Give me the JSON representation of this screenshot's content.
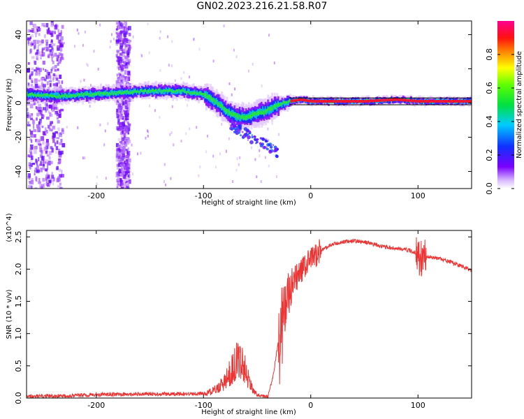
{
  "figure": {
    "title": "GN02.2023.216.21.58.R07"
  },
  "chart_data": [
    {
      "type": "heatmap",
      "xlabel": "Height of straight line (km)",
      "ylabel": "Frequency (Hz)",
      "xlim": [
        -265,
        150
      ],
      "ylim": [
        -50,
        48
      ],
      "x_ticks": [
        -200,
        -100,
        0,
        100
      ],
      "y_ticks": [
        -40,
        -20,
        0,
        20,
        40
      ],
      "grid": false,
      "colorbar": {
        "label": "Normalized spectral amplitude",
        "range": [
          0.0,
          1.0
        ],
        "ticks": [
          "0.0",
          "0.2",
          "0.4",
          "0.6",
          "0.8"
        ],
        "colormap": "rainbow (white-violet-blue-cyan-green-yellow-red-magenta)"
      },
      "ridge": [
        [
          -265,
          5
        ],
        [
          -240,
          4
        ],
        [
          -210,
          5
        ],
        [
          -180,
          6
        ],
        [
          -150,
          7
        ],
        [
          -120,
          7
        ],
        [
          -100,
          5
        ],
        [
          -90,
          1
        ],
        [
          -80,
          -4
        ],
        [
          -70,
          -8
        ],
        [
          -60,
          -8
        ],
        [
          -50,
          -6
        ],
        [
          -40,
          -4
        ],
        [
          -30,
          -1
        ],
        [
          -20,
          1
        ],
        [
          -10,
          2
        ],
        [
          0,
          1
        ],
        [
          50,
          1
        ],
        [
          80,
          2
        ],
        [
          100,
          1
        ],
        [
          150,
          1
        ]
      ],
      "noise_bands": [
        [
          -265,
          -232
        ],
        [
          -182,
          -170
        ]
      ],
      "colors": {
        "violet": "#7b14ff",
        "cyan": "#00e0d0",
        "green": "#1bd11b",
        "red": "#ff2020",
        "magenta": "#e0007a"
      }
    },
    {
      "type": "line",
      "xlabel": "Height of straight line (km)",
      "ylabel": "SNR (10 * v/v)",
      "y_multiplier": "(x10^4)",
      "xlim": [
        -265,
        150
      ],
      "ylim": [
        0,
        2.6
      ],
      "x_ticks": [
        -200,
        -100,
        0,
        100
      ],
      "y_ticks": [
        "0.0",
        "0.5",
        "1.0",
        "1.5",
        "2.0",
        "2.5"
      ],
      "grid": false,
      "series": [
        {
          "color": "#ee3333",
          "x": [
            -265,
            -240,
            -200,
            -150,
            -120,
            -100,
            -90,
            -80,
            -75,
            -70,
            -65,
            -60,
            -55,
            -50,
            -45,
            -40,
            -35,
            -30,
            -25,
            -20,
            -15,
            -10,
            -5,
            0,
            10,
            20,
            30,
            40,
            50,
            60,
            70,
            80,
            90,
            95,
            100,
            104,
            108,
            112,
            120,
            130,
            140,
            150
          ],
          "values": [
            0.01,
            0.02,
            0.04,
            0.05,
            0.05,
            0.06,
            0.12,
            0.25,
            0.4,
            0.55,
            0.6,
            0.4,
            0.15,
            0.05,
            0.03,
            0.02,
            0.35,
            0.9,
            1.3,
            1.6,
            1.8,
            1.95,
            2.05,
            2.15,
            2.3,
            2.38,
            2.42,
            2.44,
            2.42,
            2.38,
            2.34,
            2.32,
            2.3,
            2.27,
            2.24,
            2.15,
            2.2,
            2.19,
            2.16,
            2.11,
            2.05,
            1.98
          ]
        }
      ]
    }
  ]
}
